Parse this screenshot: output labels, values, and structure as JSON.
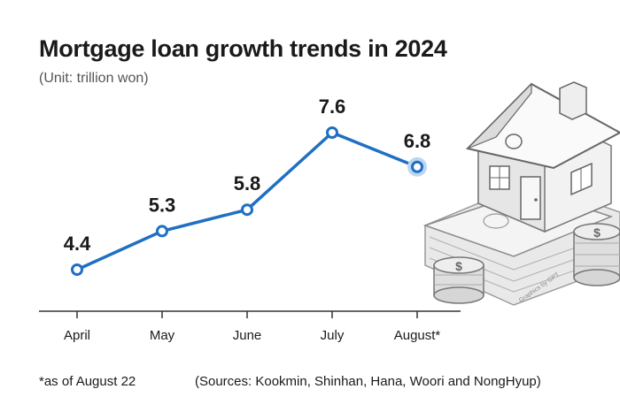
{
  "header": {
    "title": "Mortgage loan growth trends in 2024",
    "subtitle": "(Unit: trillion won)"
  },
  "chart_data": {
    "type": "line",
    "title": "Mortgage loan growth trends in 2024",
    "subtitle": "(Unit: trillion won)",
    "categories": [
      "April",
      "May",
      "June",
      "July",
      "August*"
    ],
    "series": [
      {
        "name": "Mortgage loan growth",
        "values": [
          4.4,
          5.3,
          5.8,
          7.6,
          6.8
        ]
      }
    ],
    "data_labels": [
      "4.4",
      "5.3",
      "5.8",
      "7.6",
      "6.8"
    ],
    "xlabel": "",
    "ylabel": "",
    "ylim": [
      3.0,
      8.5
    ],
    "grid": false,
    "highlight_last_point": true
  },
  "colors": {
    "line": "#1f6fc4",
    "highlight": "#bcd7f2",
    "axis": "#333333"
  },
  "footer": {
    "footnote": "*as of August 22",
    "sources": "(Sources: Kookmin, Shinhan, Hana, Woori and NongHyup)"
  },
  "illustration": {
    "credit": "Graphics by GPT"
  }
}
